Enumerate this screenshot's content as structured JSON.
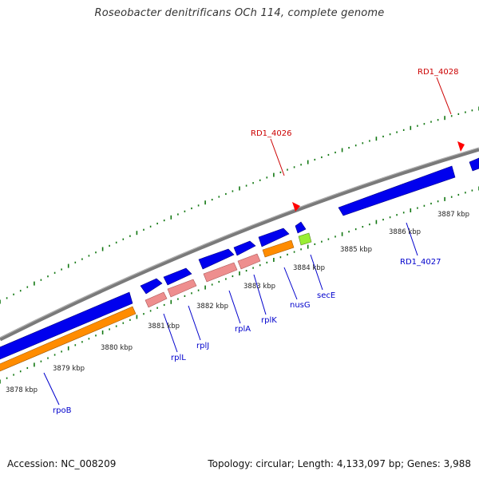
{
  "title": "Roseobacter denitrificans OCh 114, complete genome",
  "colors": {
    "backbone": "#7a7a7a",
    "gene_blue": "#0000ee",
    "gene_pink": "#ee8e8e",
    "gene_orange": "#ff8c00",
    "gene_green": "#99ee33",
    "gene_label": "#0000cc",
    "marker_label": "#cc0000",
    "marker": "#ff0000",
    "tick": "#117711"
  },
  "genes": [
    {
      "label": "rpoB"
    },
    {
      "label": "rplL"
    },
    {
      "label": "rplJ"
    },
    {
      "label": "rplA"
    },
    {
      "label": "rplK"
    },
    {
      "label": "nusG"
    },
    {
      "label": "secE"
    },
    {
      "label": "RD1_4027"
    }
  ],
  "markers": [
    {
      "label": "RD1_4026"
    },
    {
      "label": "RD1_4028"
    }
  ],
  "scale_labels": [
    "3878 kbp",
    "3879 kbp",
    "3880 kbp",
    "3881 kbp",
    "3882 kbp",
    "3883 kbp",
    "3884 kbp",
    "3885 kbp",
    "3886 kbp",
    "3887 kbp"
  ],
  "footer": {
    "accession": "Accession: NC_008209",
    "topology": "Topology: circular; Length: 4,133,097 bp; Genes: 3,988"
  }
}
